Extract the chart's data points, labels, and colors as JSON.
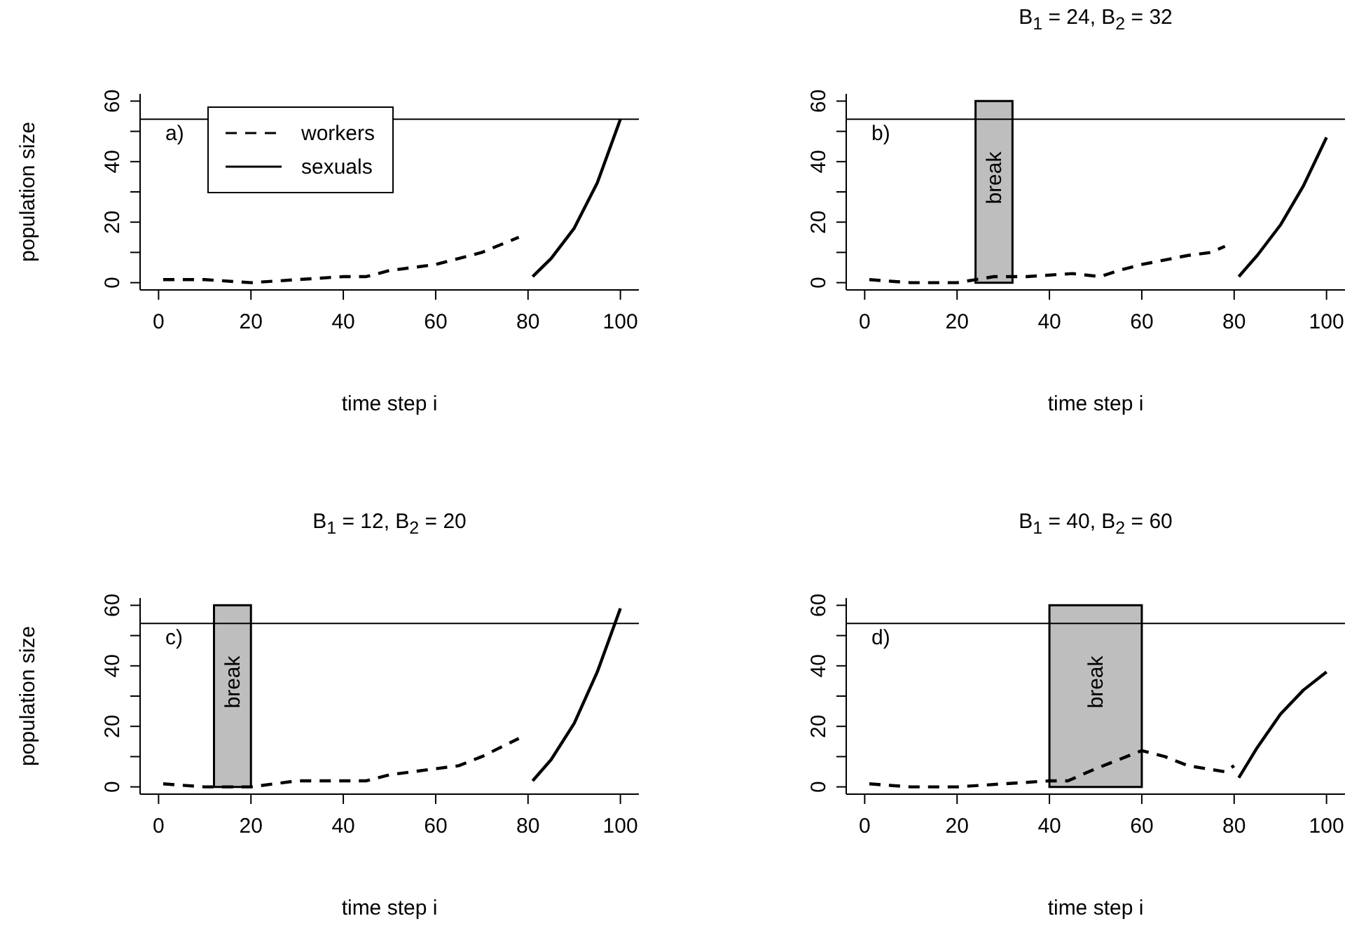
{
  "chart_data": [
    {
      "type": "line",
      "annotations": [
        "a)"
      ],
      "xlabel": "time step i",
      "ylabel": "population size",
      "xlim": [
        -4,
        104
      ],
      "ylim": [
        -2.4,
        62.4
      ],
      "xticks": [
        0,
        20,
        40,
        60,
        80,
        100
      ],
      "yticks": [
        0,
        {
          "value": 10,
          "label": null
        },
        20,
        {
          "value": 30,
          "label": null
        },
        40,
        {
          "value": 50,
          "label": null
        },
        60
      ],
      "legend": "top left",
      "marker": "none",
      "ref_lines": [
        {
          "axis": "y",
          "value": 54,
          "color": "#000000"
        }
      ],
      "series": [
        {
          "name": "workers",
          "color": "#000000",
          "line_style": "dashed",
          "x": [
            1,
            10,
            20,
            30,
            40,
            45,
            50,
            60,
            70,
            78
          ],
          "values": [
            1,
            1,
            0,
            1,
            2,
            2,
            4,
            6,
            10,
            15
          ]
        },
        {
          "name": "sexuals",
          "color": "#000000",
          "line_style": "solid",
          "x": [
            81,
            85,
            90,
            95,
            100
          ],
          "values": [
            2,
            8,
            18,
            33,
            54
          ]
        }
      ]
    },
    {
      "type": "line",
      "title": "B$_{1}$ = 24, B$_{2}$ = 32",
      "annotations": [
        "b)"
      ],
      "xlabel": "time step i",
      "xlim": [
        -4,
        104
      ],
      "ylim": [
        -2.4,
        62.4
      ],
      "xticks": [
        0,
        20,
        40,
        60,
        80,
        100
      ],
      "yticks": [
        0,
        {
          "value": 10,
          "label": null
        },
        20,
        {
          "value": 30,
          "label": null
        },
        40,
        {
          "value": 50,
          "label": null
        },
        60
      ],
      "marker": "none",
      "ref_lines": [
        {
          "axis": "y",
          "value": 54,
          "color": "#000000"
        }
      ],
      "bands": [
        {
          "axis": "x",
          "from": 24,
          "to": 32,
          "label": "break",
          "color": "#bebebe"
        }
      ],
      "series": [
        {
          "color": "#000000",
          "line_style": "dashed",
          "x": [
            1,
            10,
            20,
            24,
            28,
            35,
            45,
            51,
            55,
            60,
            70,
            75,
            78
          ],
          "values": [
            1,
            0,
            0,
            1,
            2,
            2,
            3,
            2,
            4,
            6,
            9,
            10,
            12
          ]
        },
        {
          "color": "#000000",
          "line_style": "solid",
          "x": [
            81,
            85,
            90,
            95,
            100
          ],
          "values": [
            2,
            9,
            19,
            32,
            48
          ]
        }
      ]
    },
    {
      "type": "line",
      "title": "B$_{1}$ = 12, B$_{2}$ = 20",
      "annotations": [
        "c)"
      ],
      "xlabel": "time step i",
      "ylabel": "population size",
      "xlim": [
        -4,
        104
      ],
      "ylim": [
        -2.4,
        62.4
      ],
      "xticks": [
        0,
        20,
        40,
        60,
        80,
        100
      ],
      "yticks": [
        0,
        {
          "value": 10,
          "label": null
        },
        20,
        {
          "value": 30,
          "label": null
        },
        40,
        {
          "value": 50,
          "label": null
        },
        60
      ],
      "marker": "none",
      "ref_lines": [
        {
          "axis": "y",
          "value": 54,
          "color": "#000000"
        }
      ],
      "bands": [
        {
          "axis": "x",
          "from": 12,
          "to": 20,
          "label": "break",
          "color": "#bebebe"
        }
      ],
      "series": [
        {
          "color": "#000000",
          "line_style": "dashed",
          "x": [
            1,
            10,
            12,
            20,
            25,
            30,
            40,
            45,
            50,
            55,
            60,
            65,
            70,
            78
          ],
          "values": [
            1,
            0,
            0,
            0,
            1,
            2,
            2,
            2,
            4,
            5,
            6,
            7,
            10,
            16
          ]
        },
        {
          "color": "#000000",
          "line_style": "solid",
          "x": [
            81,
            85,
            90,
            95,
            100
          ],
          "values": [
            2,
            9,
            21,
            38,
            59
          ]
        }
      ]
    },
    {
      "type": "line",
      "title": "B$_{1}$ = 40, B$_{2}$ = 60",
      "annotations": [
        "d)"
      ],
      "xlabel": "time step i",
      "xlim": [
        -4,
        104
      ],
      "ylim": [
        -2.4,
        62.4
      ],
      "xticks": [
        0,
        20,
        40,
        60,
        80,
        100
      ],
      "yticks": [
        0,
        {
          "value": 10,
          "label": null
        },
        20,
        {
          "value": 30,
          "label": null
        },
        40,
        {
          "value": 50,
          "label": null
        },
        60
      ],
      "marker": "none",
      "ref_lines": [
        {
          "axis": "y",
          "value": 54,
          "color": "#000000"
        }
      ],
      "bands": [
        {
          "axis": "x",
          "from": 40,
          "to": 60,
          "label": "break",
          "color": "#bebebe"
        }
      ],
      "series": [
        {
          "color": "#000000",
          "line_style": "dashed",
          "x": [
            1,
            10,
            20,
            30,
            40,
            44,
            50,
            55,
            60,
            65,
            70,
            78,
            80
          ],
          "values": [
            1,
            0,
            0,
            1,
            2,
            2,
            6,
            9,
            12,
            10,
            7,
            5,
            7
          ]
        },
        {
          "color": "#000000",
          "line_style": "solid",
          "x": [
            81,
            85,
            90,
            95,
            100
          ],
          "values": [
            3,
            13,
            24,
            32,
            38
          ]
        }
      ]
    }
  ]
}
